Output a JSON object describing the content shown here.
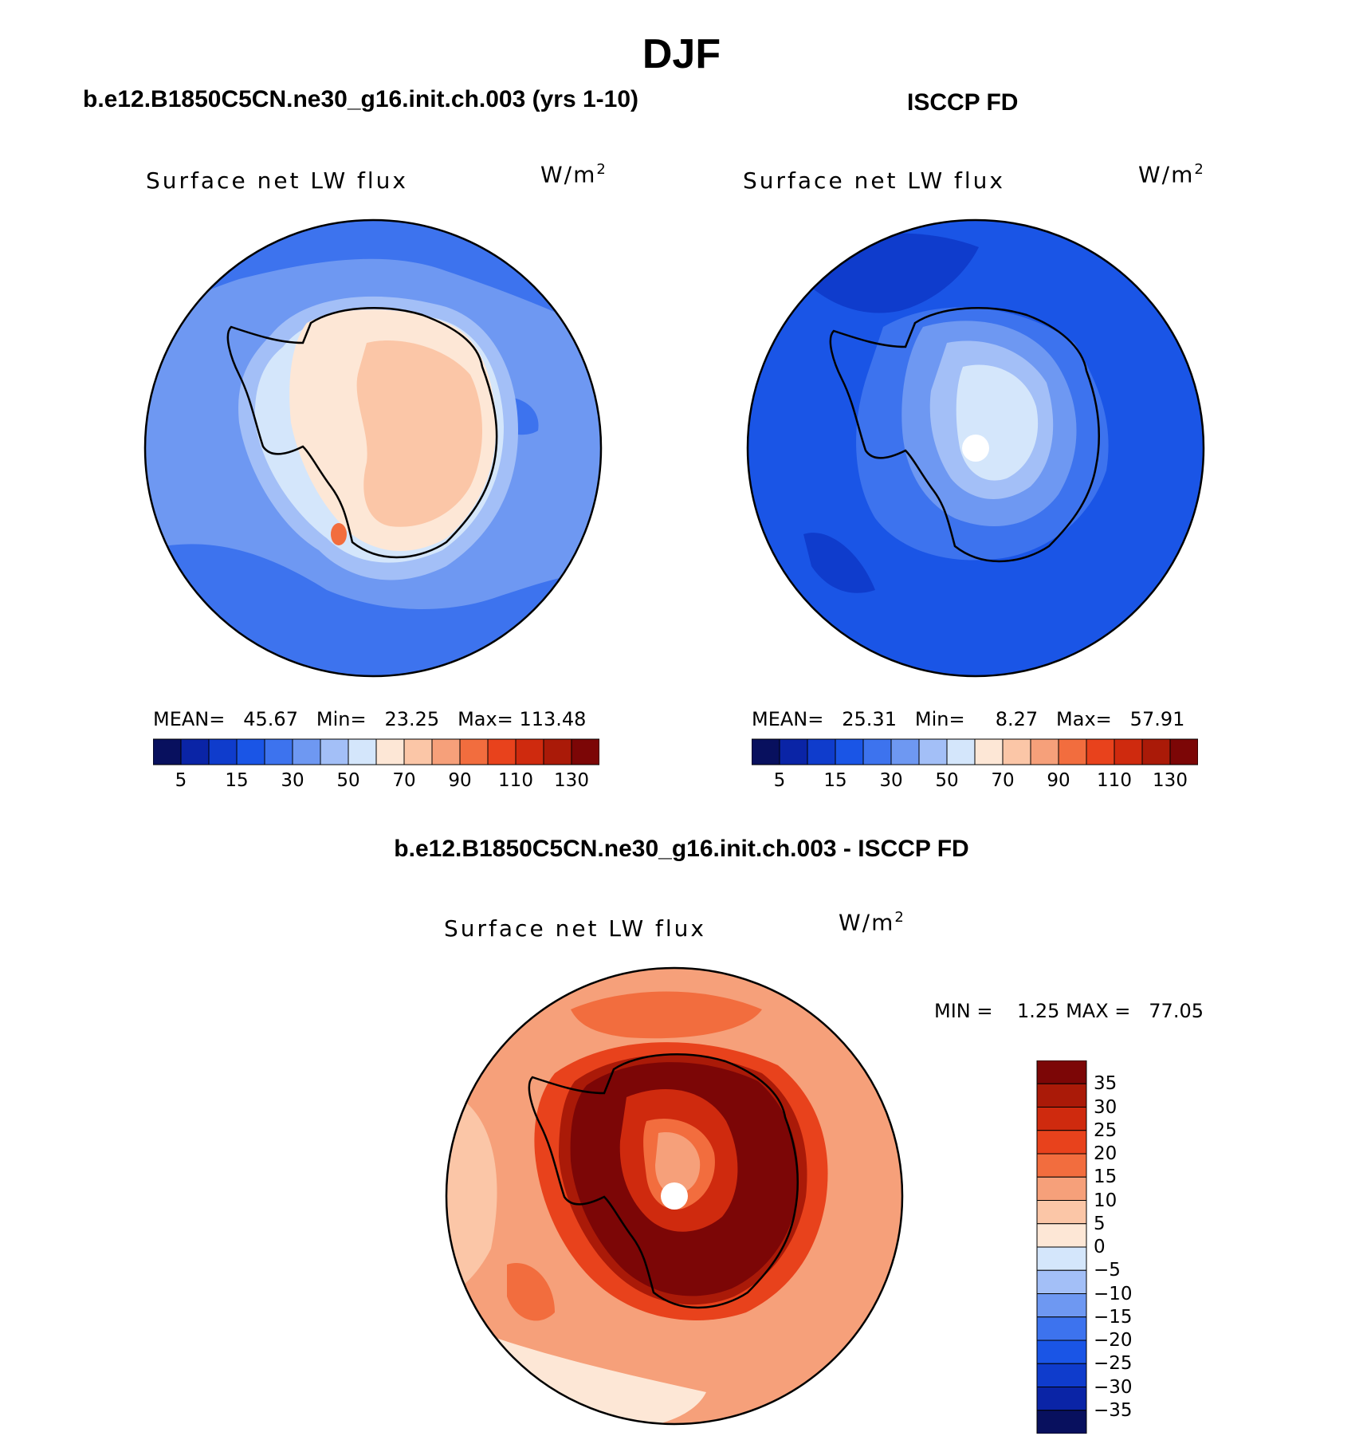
{
  "figure": {
    "season": "DJF",
    "model_title": "b.e12.B1850C5CN.ne30_g16.init.ch.003 (yrs 1-10)",
    "obs_title": "ISCCP FD",
    "diff_title": "b.e12.B1850C5CN.ne30_g16.init.ch.003 - ISCCP FD"
  },
  "colors": {
    "absolute_scale": [
      "#08105e",
      "#0a24a6",
      "#0f3ccc",
      "#1a55e6",
      "#3d73ee",
      "#6e98f2",
      "#a3bff7",
      "#d4e6fb",
      "#fde7d6",
      "#fbc6a7",
      "#f6a07a",
      "#f26d3e",
      "#e8421c",
      "#cf2a0e",
      "#aa1a08",
      "#7c0606"
    ],
    "diff_scale": [
      "#7c0606",
      "#aa1a08",
      "#cf2a0e",
      "#e8421c",
      "#f26d3e",
      "#f6a07a",
      "#fbc6a7",
      "#fde7d6",
      "#d4e6fb",
      "#a3bff7",
      "#6e98f2",
      "#3d73ee",
      "#1a55e6",
      "#0f3ccc",
      "#0a24a6",
      "#08105e"
    ]
  },
  "chart_data": [
    {
      "type": "heatmap",
      "panel": "model",
      "title": "b.e12.B1850C5CN.ne30_g16.init.ch.003 (yrs 1-10)",
      "variable": "Surface net LW flux",
      "units_base": "W/m",
      "units_exp": "2",
      "projection": "south polar stereographic",
      "stats": {
        "mean_label": "MEAN=",
        "mean": "45.67",
        "min_label": "Min=",
        "min": "23.25",
        "max_label": "Max=",
        "max": "113.48"
      },
      "colorbar_orientation": "horizontal",
      "colorbar_tick_labels": [
        "5",
        "15",
        "30",
        "50",
        "70",
        "90",
        "110",
        "130"
      ]
    },
    {
      "type": "heatmap",
      "panel": "observations",
      "title": "ISCCP FD",
      "variable": "Surface net LW flux",
      "units_base": "W/m",
      "units_exp": "2",
      "projection": "south polar stereographic",
      "stats": {
        "mean_label": "MEAN=",
        "mean": "25.31",
        "min_label": "Min=",
        "min": "8.27",
        "max_label": "Max=",
        "max": "57.91"
      },
      "colorbar_orientation": "horizontal",
      "colorbar_tick_labels": [
        "5",
        "15",
        "30",
        "50",
        "70",
        "90",
        "110",
        "130"
      ]
    },
    {
      "type": "heatmap",
      "panel": "difference",
      "title": "b.e12.B1850C5CN.ne30_g16.init.ch.003 - ISCCP FD",
      "variable": "Surface net LW flux",
      "units_base": "W/m",
      "units_exp": "2",
      "projection": "south polar stereographic",
      "stats": {
        "min_label": "MIN =",
        "min": "1.25",
        "max_label": "MAX =",
        "max": "77.05"
      },
      "colorbar_orientation": "vertical",
      "colorbar_tick_labels": [
        "35",
        "30",
        "25",
        "20",
        "15",
        "10",
        "5",
        "0",
        "−5",
        "−10",
        "−15",
        "−20",
        "−25",
        "−30",
        "−35"
      ]
    }
  ]
}
